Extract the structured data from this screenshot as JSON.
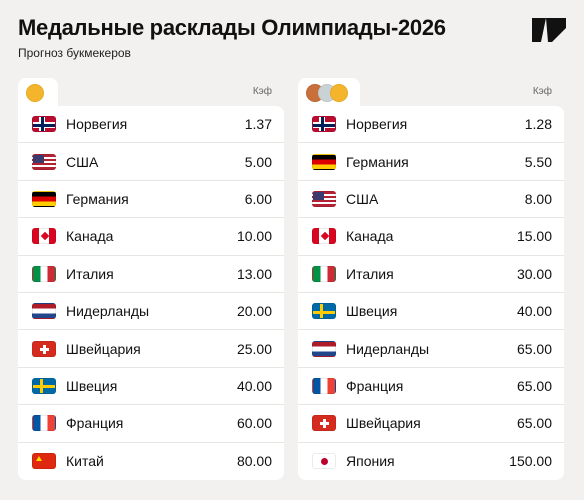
{
  "header": {
    "title": "Медальные расклады Олимпиады-2026",
    "subtitle": "Прогноз букмекеров",
    "logo_icon": "brand-logo-icon"
  },
  "colors": {
    "background": "#f2f1ef",
    "gold": "#f4b52c",
    "silver": "#c9d3d6",
    "bronze": "#c9703a"
  },
  "panels": [
    {
      "id": "gold",
      "tab_icons": [
        "gold-medal-icon"
      ],
      "kef_label": "Кэф",
      "rows": [
        {
          "flag": "norway",
          "country": "Норвегия",
          "odds": "1.37"
        },
        {
          "flag": "usa",
          "country": "США",
          "odds": "5.00"
        },
        {
          "flag": "germany",
          "country": "Германия",
          "odds": "6.00"
        },
        {
          "flag": "canada",
          "country": "Канада",
          "odds": "10.00"
        },
        {
          "flag": "italy",
          "country": "Италия",
          "odds": "13.00"
        },
        {
          "flag": "netherlands",
          "country": "Нидерланды",
          "odds": "20.00"
        },
        {
          "flag": "switzerland",
          "country": "Швейцария",
          "odds": "25.00"
        },
        {
          "flag": "sweden",
          "country": "Швеция",
          "odds": "40.00"
        },
        {
          "flag": "france",
          "country": "Франция",
          "odds": "60.00"
        },
        {
          "flag": "china",
          "country": "Китай",
          "odds": "80.00"
        }
      ]
    },
    {
      "id": "total",
      "tab_icons": [
        "bronze-medal-icon",
        "silver-medal-icon",
        "gold-medal-icon"
      ],
      "kef_label": "Кэф",
      "rows": [
        {
          "flag": "norway",
          "country": "Норвегия",
          "odds": "1.28"
        },
        {
          "flag": "germany",
          "country": "Германия",
          "odds": "5.50"
        },
        {
          "flag": "usa",
          "country": "США",
          "odds": "8.00"
        },
        {
          "flag": "canada",
          "country": "Канада",
          "odds": "15.00"
        },
        {
          "flag": "italy",
          "country": "Италия",
          "odds": "30.00"
        },
        {
          "flag": "sweden",
          "country": "Швеция",
          "odds": "40.00"
        },
        {
          "flag": "netherlands",
          "country": "Нидерланды",
          "odds": "65.00"
        },
        {
          "flag": "france",
          "country": "Франция",
          "odds": "65.00"
        },
        {
          "flag": "switzerland",
          "country": "Швейцария",
          "odds": "65.00"
        },
        {
          "flag": "japan",
          "country": "Япония",
          "odds": "150.00"
        }
      ]
    }
  ]
}
